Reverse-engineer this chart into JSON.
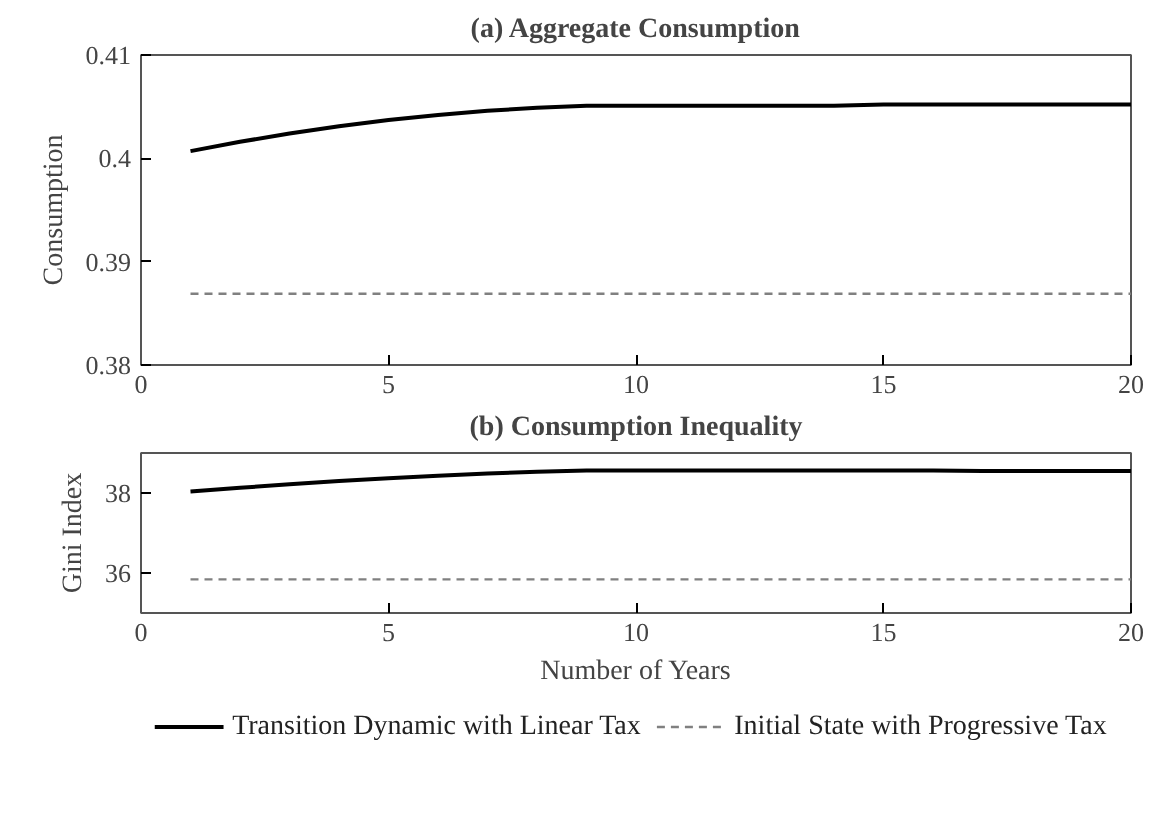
{
  "chart_data": [
    {
      "type": "line",
      "title": "(a) Aggregate Consumption",
      "ylabel": "Consumption",
      "x": [
        1,
        2,
        3,
        4,
        5,
        6,
        7,
        8,
        9,
        10,
        11,
        12,
        13,
        14,
        15,
        16,
        17,
        18,
        19,
        20
      ],
      "xlim": [
        0,
        20
      ],
      "xticks": [
        0,
        5,
        10,
        15,
        20
      ],
      "ylim": [
        0.38,
        0.41
      ],
      "yticks": [
        0.38,
        0.39,
        {
          "value": 0.4,
          "label": "0.4"
        },
        0.41
      ],
      "grid": false,
      "series": [
        {
          "color": "#000000",
          "line_style": "solid",
          "values": [
            0.4007,
            0.4016,
            0.4024,
            0.4031,
            0.4037,
            0.4042,
            0.4046,
            0.4049,
            0.4051,
            0.4051,
            0.4051,
            0.4051,
            0.4051,
            0.4051,
            0.4052,
            0.4052,
            0.4052,
            0.4052,
            0.4052,
            0.4052
          ]
        },
        {
          "color": "#808080",
          "line_style": "dashed",
          "values": [
            0.3869,
            0.3869,
            0.3869,
            0.3869,
            0.3869,
            0.3869,
            0.3869,
            0.3869,
            0.3869,
            0.3869,
            0.3869,
            0.3869,
            0.3869,
            0.3869,
            0.3869,
            0.3869,
            0.3869,
            0.3869,
            0.3869,
            0.3869
          ]
        }
      ]
    },
    {
      "type": "line",
      "title": "(b) Consumption Inequality",
      "xlabel": "Number of Years",
      "ylabel": "Gini Index",
      "x": [
        1,
        2,
        3,
        4,
        5,
        6,
        7,
        8,
        9,
        10,
        11,
        12,
        13,
        14,
        15,
        16,
        17,
        18,
        19,
        20
      ],
      "xlim": [
        0,
        20
      ],
      "xticks": [
        0,
        5,
        10,
        15,
        20
      ],
      "ylim": [
        35,
        39
      ],
      "yticks": [
        36,
        38
      ],
      "grid": false,
      "legend": "bottom",
      "series": [
        {
          "name": "Transition Dynamic with Linear Tax",
          "color": "#000000",
          "line_style": "solid",
          "values": [
            38.04,
            38.13,
            38.22,
            38.3,
            38.37,
            38.43,
            38.49,
            38.53,
            38.56,
            38.56,
            38.56,
            38.56,
            38.56,
            38.56,
            38.56,
            38.56,
            38.55,
            38.55,
            38.55,
            38.55
          ]
        },
        {
          "name": "Initial State with Progressive Tax",
          "color": "#808080",
          "line_style": "dashed",
          "values": [
            35.84,
            35.84,
            35.84,
            35.84,
            35.84,
            35.84,
            35.84,
            35.84,
            35.84,
            35.84,
            35.84,
            35.84,
            35.84,
            35.84,
            35.84,
            35.84,
            35.84,
            35.84,
            35.84,
            35.84
          ]
        }
      ]
    }
  ]
}
